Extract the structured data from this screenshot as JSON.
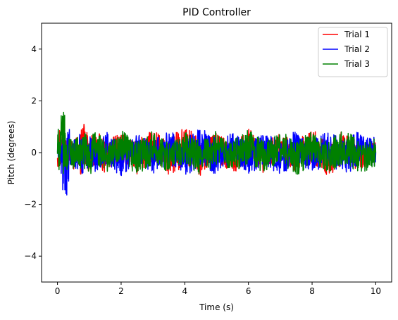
{
  "chart_data": {
    "type": "line",
    "title": "PID Controller",
    "xlabel": "Time (s)",
    "ylabel": "Pitch (degrees)",
    "xlim": [
      -0.5,
      10.5
    ],
    "ylim": [
      -5,
      5
    ],
    "xticks": [
      0,
      2,
      4,
      6,
      8,
      10
    ],
    "yticks": [
      -4,
      -2,
      0,
      2,
      4
    ],
    "xtick_labels": [
      "0",
      "2",
      "4",
      "6",
      "8",
      "10"
    ],
    "ytick_labels": [
      "−4",
      "−2",
      "0",
      "2",
      "4"
    ],
    "grid": false,
    "legend_position": "top-right",
    "series": [
      {
        "name": "Trial 1",
        "color": "#ff0000",
        "x": [
          0,
          0.05,
          0.1,
          0.15,
          0.2,
          0.25,
          0.3,
          0.4,
          0.5,
          0.6,
          0.7,
          0.8,
          1.0,
          1.2,
          1.5,
          2.0,
          2.5,
          3.0,
          3.5,
          4.0,
          4.5,
          5.0,
          5.5,
          6.0,
          6.5,
          7.0,
          7.5,
          8.0,
          8.5,
          9.0,
          9.5,
          10.0
        ],
        "values": [
          0.5,
          0.9,
          0.3,
          0.7,
          0.2,
          0.6,
          -0.3,
          0.5,
          -0.4,
          0.6,
          -0.5,
          0.9,
          -0.4,
          0.7,
          -0.5,
          0.6,
          -0.5,
          0.7,
          -0.6,
          0.8,
          -0.5,
          0.6,
          -0.6,
          0.7,
          -0.5,
          0.6,
          -0.6,
          0.7,
          -0.7,
          0.6,
          -0.5,
          0.2
        ]
      },
      {
        "name": "Trial 2",
        "color": "#0000ff",
        "x": [
          0,
          0.05,
          0.1,
          0.15,
          0.2,
          0.25,
          0.3,
          0.4,
          0.5,
          0.6,
          0.7,
          0.8,
          1.0,
          1.2,
          1.5,
          2.0,
          2.5,
          3.0,
          3.5,
          4.0,
          4.5,
          5.0,
          5.5,
          6.0,
          6.5,
          7.0,
          7.5,
          8.0,
          8.5,
          9.0,
          9.5,
          10.0
        ],
        "values": [
          0.3,
          0.1,
          -0.2,
          -0.8,
          -1.4,
          -0.9,
          -1.3,
          -0.5,
          0.4,
          -0.6,
          0.5,
          -0.7,
          0.6,
          -0.6,
          0.5,
          -0.7,
          0.6,
          -0.6,
          0.7,
          -0.6,
          0.8,
          -0.5,
          0.6,
          -0.6,
          0.7,
          -0.7,
          0.6,
          -0.6,
          0.7,
          -0.7,
          0.6,
          0.0
        ]
      },
      {
        "name": "Trial 3",
        "color": "#008000",
        "x": [
          0,
          0.05,
          0.1,
          0.15,
          0.2,
          0.25,
          0.3,
          0.4,
          0.5,
          0.6,
          0.7,
          0.8,
          1.0,
          1.2,
          1.5,
          2.0,
          2.5,
          3.0,
          3.5,
          4.0,
          4.5,
          5.0,
          5.5,
          6.0,
          6.5,
          7.0,
          7.5,
          8.0,
          8.5,
          9.0,
          9.5,
          10.0
        ],
        "values": [
          0.4,
          0.8,
          1.2,
          0.5,
          1.25,
          0.3,
          -0.6,
          0.6,
          -0.5,
          0.5,
          -0.6,
          0.6,
          -0.8,
          0.7,
          -0.6,
          0.6,
          -0.7,
          0.6,
          -0.6,
          0.5,
          -0.7,
          0.6,
          -0.6,
          0.7,
          -0.5,
          0.6,
          -0.7,
          0.6,
          -0.5,
          0.7,
          -0.6,
          0.0
        ]
      }
    ]
  }
}
